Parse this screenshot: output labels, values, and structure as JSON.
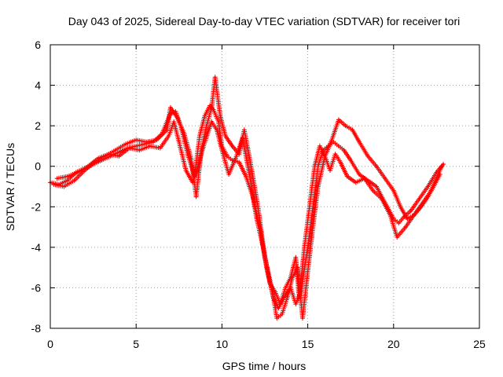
{
  "chart_data": {
    "type": "scatter",
    "title": "Day 043 of 2025, Sidereal Day-to-day VTEC variation (SDTVAR) for receiver tori",
    "xlabel": "GPS time / hours",
    "ylabel": "SDTVAR / TECUs",
    "xlim": [
      0,
      25
    ],
    "ylim": [
      -8,
      6
    ],
    "xticks": [
      "0",
      "5",
      "10",
      "15",
      "20",
      "25"
    ],
    "yticks": [
      "-8",
      "-6",
      "-4",
      "-2",
      "0",
      "2",
      "4",
      "6"
    ],
    "grid": true,
    "marker": "+",
    "series": [
      {
        "color": "#ff0000",
        "x": [
          0.0,
          0.5,
          1.0,
          1.5,
          2.0,
          2.5,
          3.0,
          3.5,
          4.0,
          4.5,
          5.0,
          5.5,
          6.0,
          6.5,
          7.0,
          7.3,
          7.6,
          8.0,
          8.4,
          8.7,
          9.0,
          9.3,
          9.5,
          9.8,
          10.0,
          10.3,
          10.6,
          11.0,
          11.4,
          11.8,
          12.2,
          12.6,
          13.0,
          13.3,
          13.6,
          14.0,
          14.3,
          14.6,
          15.0,
          15.3,
          15.6,
          15.9,
          16.2,
          16.5,
          16.8,
          17.1,
          17.5,
          18.0,
          18.5,
          19.0,
          19.5,
          20.0,
          20.3,
          20.6,
          21.0,
          21.5,
          22.0,
          22.5,
          22.9
        ],
        "y": [
          -0.8,
          -0.9,
          -0.7,
          -0.3,
          -0.1,
          0.1,
          0.3,
          0.5,
          0.7,
          0.9,
          1.0,
          1.1,
          1.2,
          1.6,
          2.6,
          2.7,
          2.0,
          0.6,
          -0.5,
          1.5,
          2.5,
          3.0,
          2.8,
          2.2,
          1.0,
          0.5,
          0.3,
          0.2,
          -0.5,
          -1.5,
          -3.0,
          -5.0,
          -6.5,
          -7.0,
          -6.5,
          -6.0,
          -6.8,
          -6.2,
          -4.0,
          -2.0,
          0.0,
          0.8,
          1.0,
          1.2,
          1.0,
          0.8,
          0.3,
          -0.4,
          -0.7,
          -1.0,
          -1.8,
          -2.6,
          -2.8,
          -2.5,
          -2.2,
          -1.6,
          -1.0,
          -0.3,
          0.1
        ]
      },
      {
        "color": "#ff0000",
        "x": [
          0.2,
          0.8,
          1.4,
          2.0,
          2.6,
          3.2,
          3.8,
          4.4,
          5.0,
          5.6,
          6.2,
          6.8,
          7.0,
          7.4,
          7.8,
          8.2,
          8.5,
          8.8,
          9.1,
          9.4,
          9.6,
          9.9,
          10.2,
          10.6,
          11.0,
          11.3,
          11.7,
          12.1,
          12.5,
          12.9,
          13.2,
          13.5,
          13.8,
          14.1,
          14.4,
          14.7,
          15.0,
          15.3,
          15.6,
          16.0,
          16.4,
          16.8,
          17.2,
          17.6,
          18.0,
          18.5,
          19.0,
          19.5,
          20.0,
          20.4,
          20.8,
          21.2,
          21.6,
          22.0,
          22.4,
          22.8
        ],
        "y": [
          -0.9,
          -1.0,
          -0.7,
          -0.2,
          0.2,
          0.5,
          0.8,
          1.1,
          1.3,
          1.2,
          1.3,
          1.8,
          2.9,
          2.4,
          1.6,
          0.4,
          -1.5,
          0.8,
          2.0,
          2.9,
          4.4,
          2.5,
          1.5,
          1.0,
          0.6,
          1.8,
          0.0,
          -2.0,
          -4.5,
          -6.0,
          -7.5,
          -7.3,
          -6.5,
          -5.5,
          -5.0,
          -7.5,
          -5.2,
          -3.0,
          -1.0,
          0.5,
          1.3,
          2.3,
          2.0,
          1.8,
          1.2,
          0.5,
          0.0,
          -0.6,
          -1.2,
          -2.0,
          -2.6,
          -2.4,
          -2.0,
          -1.5,
          -0.8,
          0.0
        ]
      },
      {
        "color": "#ff0000",
        "x": [
          0.4,
          1.0,
          1.6,
          2.2,
          2.8,
          3.4,
          4.0,
          4.6,
          5.2,
          5.8,
          6.4,
          6.9,
          7.2,
          7.5,
          7.9,
          8.3,
          8.6,
          9.0,
          9.4,
          9.7,
          10.0,
          10.4,
          10.8,
          11.2,
          11.6,
          12.0,
          12.4,
          12.8,
          13.1,
          13.4,
          13.7,
          14.0,
          14.3,
          14.5,
          14.8,
          15.1,
          15.4,
          15.7,
          16.0,
          16.3,
          16.6,
          16.9,
          17.3,
          17.8,
          18.3,
          18.8,
          19.3,
          19.8,
          20.2,
          20.7,
          21.2,
          21.7,
          22.2,
          22.7
        ],
        "y": [
          -0.6,
          -0.5,
          -0.3,
          0.0,
          0.4,
          0.6,
          0.5,
          0.9,
          0.8,
          1.0,
          0.9,
          1.5,
          2.2,
          1.2,
          -0.2,
          -0.8,
          0.0,
          1.2,
          2.2,
          1.8,
          0.8,
          -0.4,
          0.4,
          1.4,
          -0.4,
          -2.5,
          -4.0,
          -5.8,
          -6.2,
          -6.8,
          -6.0,
          -5.5,
          -4.5,
          -6.5,
          -4.0,
          -2.0,
          0.0,
          1.0,
          0.5,
          -0.2,
          0.6,
          0.2,
          -0.5,
          -0.8,
          -0.6,
          -1.2,
          -1.6,
          -2.4,
          -3.5,
          -3.0,
          -2.4,
          -1.8,
          -1.2,
          -0.4
        ]
      }
    ]
  }
}
